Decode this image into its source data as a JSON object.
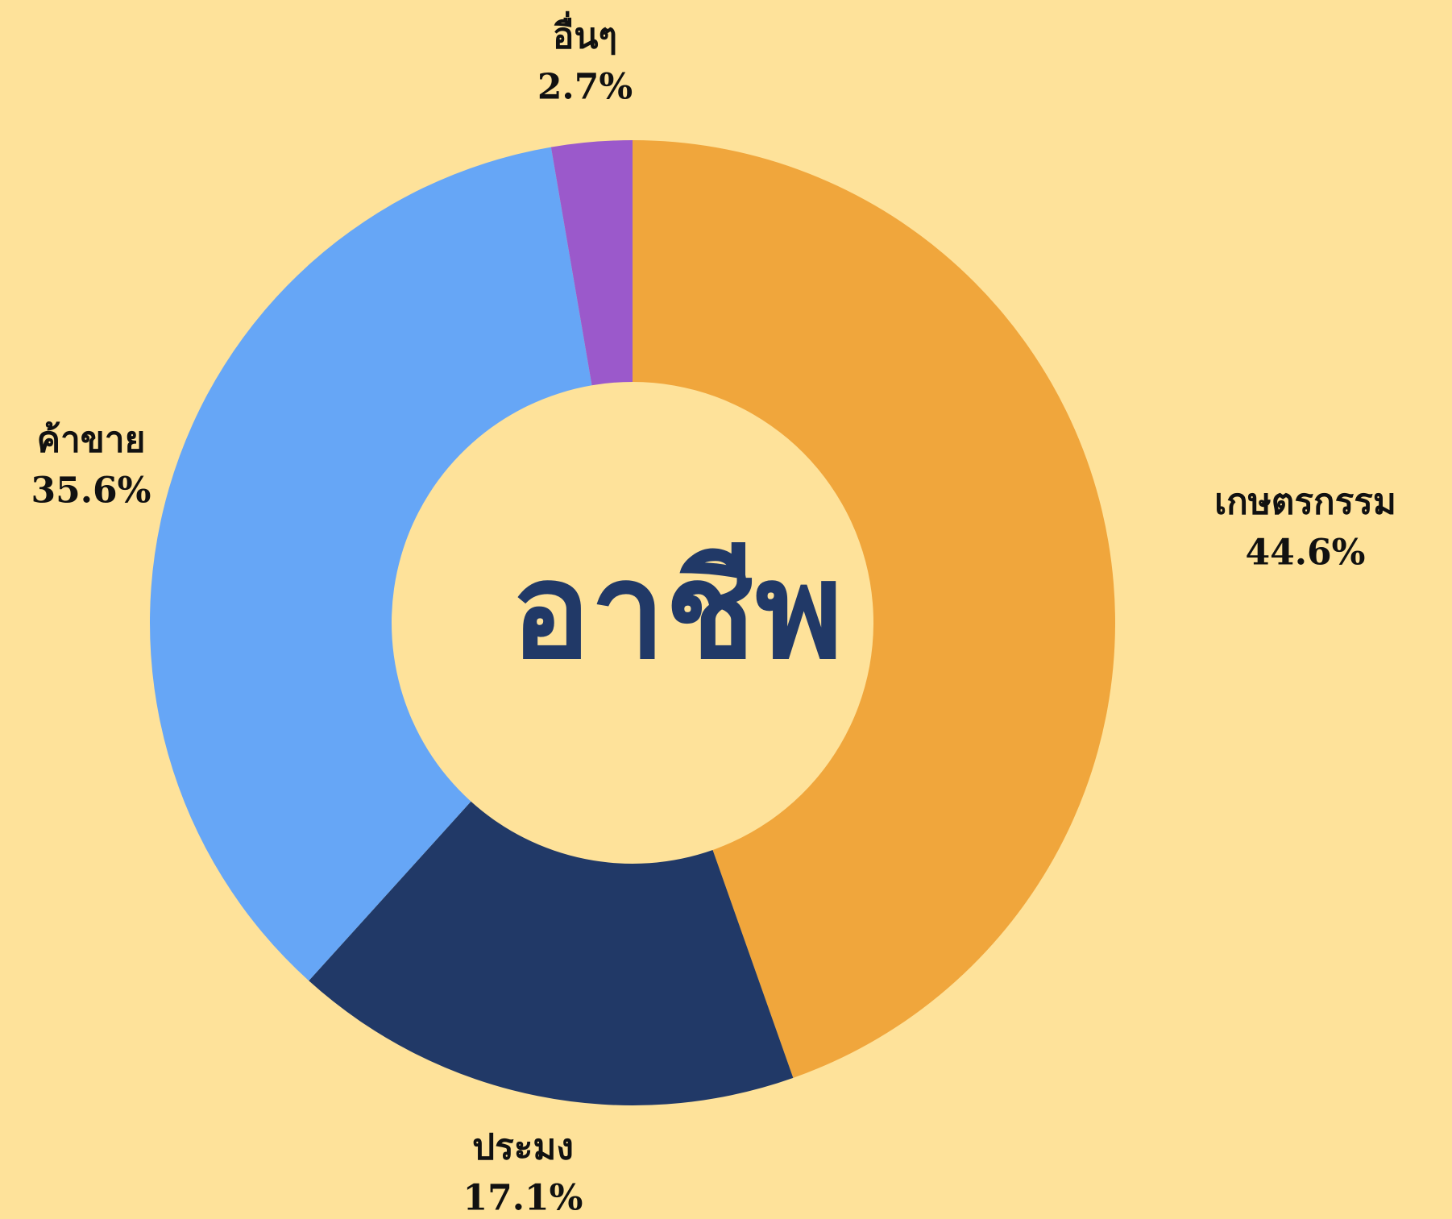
{
  "chart_data": {
    "type": "pie",
    "title": "อาชีพ",
    "categories": [
      "เกษตรกรรม",
      "ประมง",
      "ค้าขาย",
      "อื่นๆ"
    ],
    "values": [
      44.6,
      17.1,
      35.6,
      2.7
    ],
    "value_labels": [
      "44.6%",
      "17.1%",
      "35.6%",
      "2.7%"
    ],
    "colors": [
      "#F0A63C",
      "#213967",
      "#66A6F6",
      "#9B59CB"
    ]
  }
}
